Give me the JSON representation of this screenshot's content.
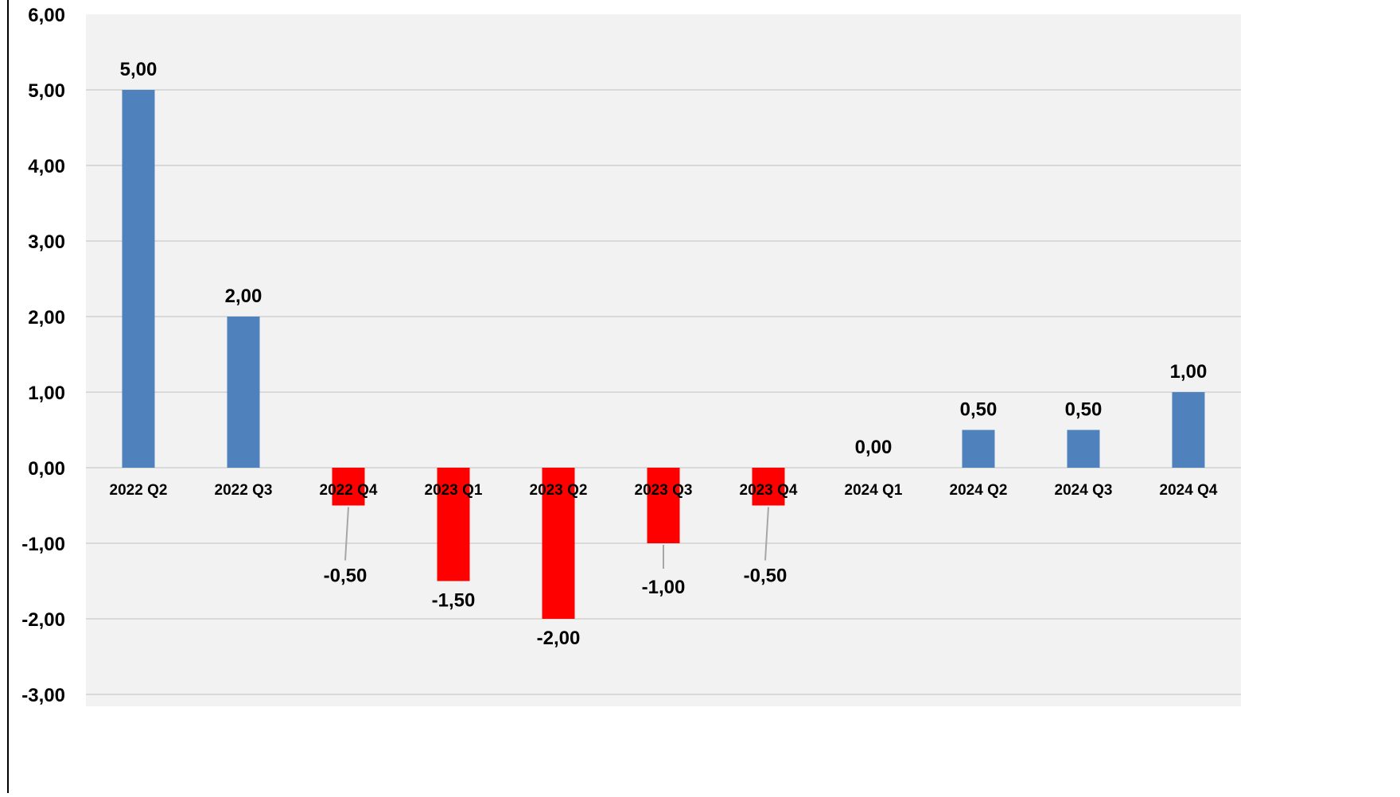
{
  "chart_data": {
    "type": "bar",
    "title": "",
    "xlabel": "",
    "ylabel": "",
    "categories": [
      "2022 Q2",
      "2022 Q3",
      "2022 Q4",
      "2023 Q1",
      "2023 Q2",
      "2023 Q3",
      "2023 Q4",
      "2024 Q1",
      "2024 Q2",
      "2024 Q3",
      "2024 Q4"
    ],
    "values": [
      5.0,
      2.0,
      -0.5,
      -1.5,
      -2.0,
      -1.0,
      -0.5,
      0.0,
      0.5,
      0.5,
      1.0
    ],
    "data_labels": [
      "5,00",
      "2,00",
      "-0,50",
      "-1,50",
      "-2,00",
      "-1,00",
      "-0,50",
      "0,00",
      "0,50",
      "0,50",
      "1,00"
    ],
    "ylim": [
      -3,
      6
    ],
    "y_ticks": [
      {
        "value": 6,
        "label": "6,00"
      },
      {
        "value": 5,
        "label": "5,00"
      },
      {
        "value": 4,
        "label": "4,00"
      },
      {
        "value": 3,
        "label": "3,00"
      },
      {
        "value": 2,
        "label": "2,00"
      },
      {
        "value": 1,
        "label": "1,00"
      },
      {
        "value": 0,
        "label": "0,00"
      },
      {
        "value": -1,
        "label": "-1,00"
      },
      {
        "value": -2,
        "label": "-2,00"
      },
      {
        "value": -3,
        "label": "-3,00"
      }
    ],
    "grid": true,
    "legend": "none",
    "colors": {
      "positive": "#4f81bd",
      "negative": "#ff0000",
      "plot_background": "#f2f2f2",
      "gridline": "#d9d9d9",
      "leader_line": "#a6a6a6"
    }
  }
}
